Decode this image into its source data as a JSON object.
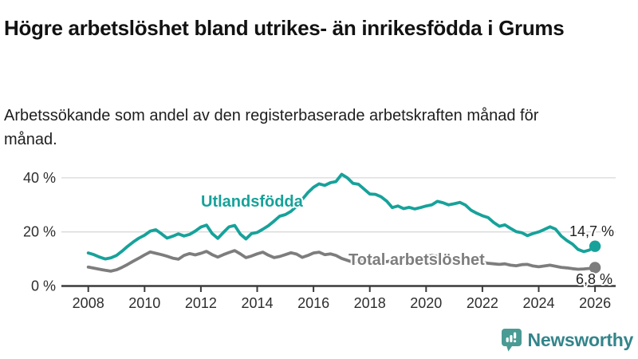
{
  "header": {
    "title": "Högre arbetslöshet bland utrikes- än inrikesfödda i Grums",
    "subtitle": "Arbetssökande som andel av den registerbaserade arbetskraften månad för månad."
  },
  "chart_data": {
    "type": "line",
    "title": "Högre arbetslöshet bland utrikes- än inrikesfödda i Grums",
    "subtitle": "Arbetssökande som andel av den registerbaserade arbetskraften månad för månad.",
    "unit": "%",
    "grid": true,
    "x_start": 2008,
    "x_step": 0.2,
    "xlim": [
      2008,
      2026
    ],
    "ylim": [
      0,
      44
    ],
    "x_ticks": [
      2008,
      2010,
      2012,
      2014,
      2016,
      2018,
      2020,
      2022,
      2024,
      2026
    ],
    "y_ticks": [
      {
        "value": 0,
        "label": "0 %"
      },
      {
        "value": 20,
        "label": "20 %"
      },
      {
        "value": 40,
        "label": "40 %"
      }
    ],
    "series": [
      {
        "id": "utlandsfodda",
        "name": "Utlandsfödda",
        "color": "#16a29a",
        "end_label": "14,7 %",
        "end_value": 14.7,
        "values": [
          12.2,
          11.6,
          10.7,
          10.0,
          10.4,
          11.3,
          12.9,
          14.7,
          16.3,
          17.7,
          18.8,
          20.3,
          20.8,
          19.3,
          17.7,
          18.4,
          19.3,
          18.5,
          19.1,
          20.3,
          21.8,
          22.5,
          19.4,
          17.6,
          19.8,
          21.9,
          22.4,
          19.2,
          17.4,
          19.4,
          19.8,
          21.0,
          22.3,
          24.0,
          25.8,
          26.4,
          27.6,
          29.5,
          32.0,
          34.5,
          36.5,
          37.8,
          37.2,
          38.2,
          38.6,
          41.3,
          40.0,
          38.0,
          37.6,
          35.8,
          34.0,
          33.9,
          33.0,
          31.4,
          29.0,
          29.6,
          28.6,
          29.1,
          28.5,
          29.0,
          29.6,
          30.0,
          31.3,
          30.8,
          30.0,
          30.4,
          30.9,
          29.9,
          28.0,
          26.9,
          26.0,
          25.3,
          23.5,
          22.1,
          22.6,
          21.3,
          20.1,
          19.7,
          18.6,
          19.4,
          20.0,
          20.9,
          21.9,
          21.0,
          18.5,
          16.8,
          15.5,
          13.5,
          12.7,
          13.3,
          14.7
        ]
      },
      {
        "id": "total",
        "name": "Total arbetslöshet",
        "color": "#7d7d7d",
        "end_label": "6,8 %",
        "end_value": 6.8,
        "values": [
          7.0,
          6.6,
          6.2,
          5.8,
          5.5,
          6.0,
          6.9,
          8.0,
          9.2,
          10.3,
          11.5,
          12.6,
          12.1,
          11.6,
          11.0,
          10.3,
          9.9,
          11.3,
          12.0,
          11.5,
          12.1,
          12.8,
          11.6,
          10.7,
          11.6,
          12.4,
          13.1,
          11.9,
          10.5,
          11.1,
          11.9,
          12.5,
          11.4,
          10.5,
          10.9,
          11.6,
          12.3,
          11.8,
          10.6,
          11.3,
          12.2,
          12.5,
          11.6,
          11.9,
          11.3,
          10.2,
          9.5,
          8.8,
          9.2,
          9.9,
          10.4,
          10.0,
          9.4,
          9.0,
          9.4,
          10.0,
          10.2,
          9.8,
          10.1,
          10.6,
          11.0,
          11.3,
          10.9,
          10.6,
          10.4,
          10.1,
          9.8,
          9.5,
          9.2,
          8.9,
          8.7,
          8.4,
          8.2,
          8.0,
          8.2,
          7.7,
          7.5,
          7.9,
          8.0,
          7.4,
          7.1,
          7.4,
          7.7,
          7.3,
          6.9,
          6.7,
          6.4,
          6.2,
          6.3,
          6.5,
          6.8
        ]
      }
    ]
  },
  "footer": {
    "brand": "Newsworthy",
    "brand_color": "#33858a",
    "logo_icon": "bar-chart-speech-bubble-icon",
    "logo_color": "#4a9b94"
  }
}
